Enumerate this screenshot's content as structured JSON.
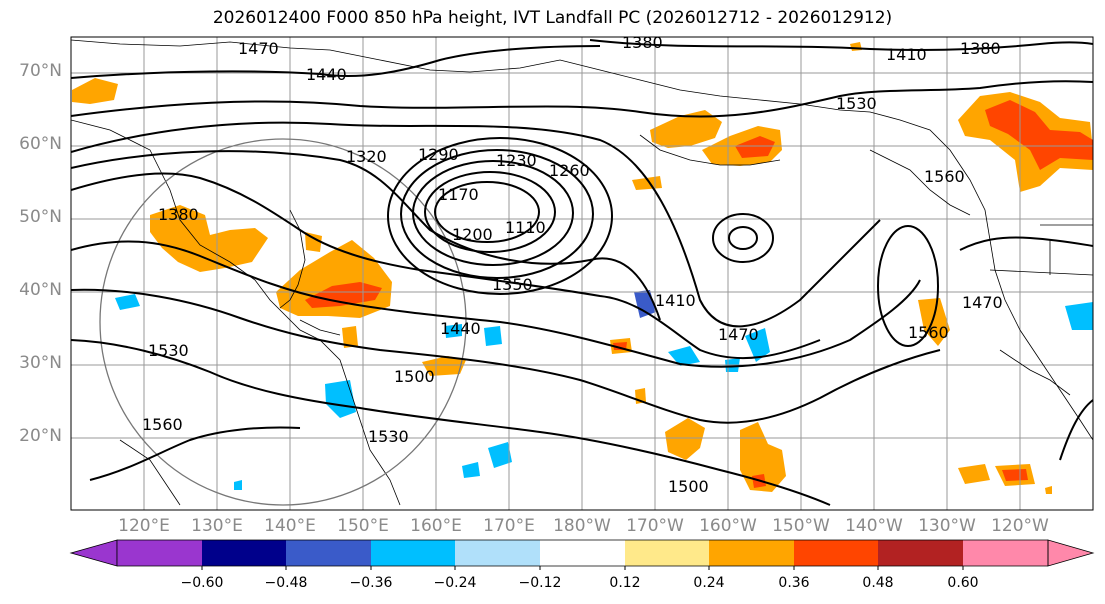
{
  "title": "2026012400 F000 850 hPa height, IVT Landfall PC (2026012712 - 2026012912)",
  "latitude_labels": [
    "70°N",
    "60°N",
    "50°N",
    "40°N",
    "30°N",
    "20°N"
  ],
  "longitude_labels": [
    "120°E",
    "130°E",
    "140°E",
    "150°E",
    "160°E",
    "170°E",
    "180°W",
    "170°W",
    "160°W",
    "150°W",
    "140°W",
    "130°W",
    "120°W"
  ],
  "contour_labels": [
    "1470",
    "1380",
    "1440",
    "1410",
    "1380",
    "1530",
    "1320",
    "1290",
    "1230",
    "1260",
    "1380",
    "1170",
    "1200",
    "1110",
    "1560",
    "1350",
    "1410",
    "1440",
    "1470",
    "1560",
    "1470",
    "1530",
    "1500",
    "1560",
    "1530",
    "1500"
  ],
  "colorbar": {
    "tick_labels": [
      "−0.60",
      "−0.48",
      "−0.36",
      "−0.24",
      "−0.12",
      "0.12",
      "0.24",
      "0.36",
      "0.48",
      "0.60"
    ],
    "colors": [
      "#9a36cf",
      "#00008b",
      "#3a5bc9",
      "#00bfff",
      "#b0e0fa",
      "#ffffff",
      "#ffe98a",
      "#ffa500",
      "#ff4500",
      "#b22222",
      "#ff88aa"
    ]
  }
}
